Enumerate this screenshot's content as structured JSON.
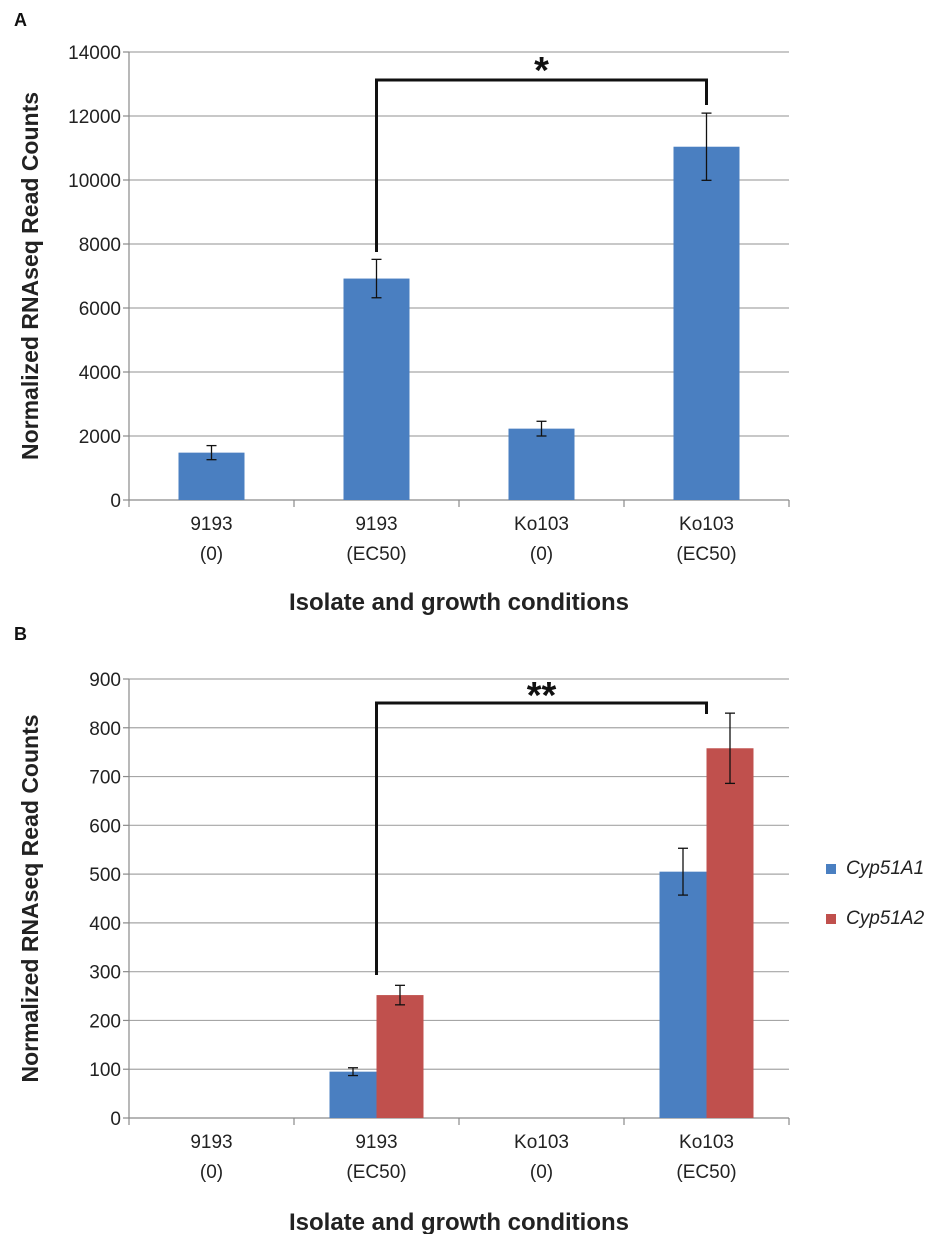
{
  "chart_data": [
    {
      "panel": "A",
      "type": "bar",
      "categories": [
        [
          "9193",
          "(0)"
        ],
        [
          "9193",
          "(EC50)"
        ],
        [
          "Ko103",
          "(0)"
        ],
        [
          "Ko103",
          "(EC50)"
        ]
      ],
      "series": [
        {
          "values": [
            1480,
            6920,
            2230,
            11040
          ],
          "errors": [
            220,
            600,
            230,
            1050
          ],
          "color": "#4a7fc1"
        }
      ],
      "ylabel": "Normalized RNAseq Read Counts",
      "xlabel": "Isolate and growth conditions",
      "ylim": [
        0,
        14000
      ],
      "yticks": [
        0,
        2000,
        4000,
        6000,
        8000,
        10000,
        12000,
        14000
      ],
      "grid": true,
      "significance": {
        "from": 1,
        "to": 3,
        "label": "*"
      }
    },
    {
      "panel": "B",
      "type": "bar",
      "categories": [
        [
          "9193",
          "(0)"
        ],
        [
          "9193",
          "(EC50)"
        ],
        [
          "Ko103",
          "(0)"
        ],
        [
          "Ko103",
          "(EC50)"
        ]
      ],
      "series": [
        {
          "name": "Cyp51A1",
          "values": [
            0,
            95,
            0,
            505
          ],
          "errors": [
            0,
            8,
            0,
            48
          ],
          "color": "#4a7fc1"
        },
        {
          "name": "Cyp51A2",
          "values": [
            0,
            252,
            0,
            758
          ],
          "errors": [
            0,
            20,
            0,
            72
          ],
          "color": "#c0504d"
        }
      ],
      "ylabel": "Normalized RNAseq Read Counts",
      "xlabel": "Isolate and growth conditions",
      "ylim": [
        0,
        900
      ],
      "yticks": [
        0,
        100,
        200,
        300,
        400,
        500,
        600,
        700,
        800,
        900
      ],
      "grid": true,
      "legend": "right",
      "significance": {
        "from": 1,
        "to": 3,
        "label": "**"
      }
    }
  ]
}
